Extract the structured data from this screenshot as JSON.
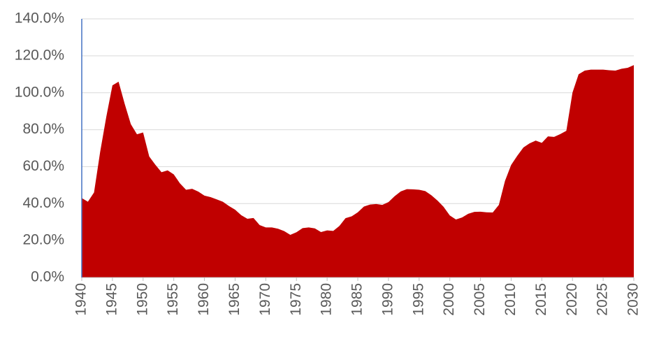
{
  "chart_data": {
    "type": "area",
    "x": [
      1940,
      1941,
      1942,
      1943,
      1944,
      1945,
      1946,
      1947,
      1948,
      1949,
      1950,
      1951,
      1952,
      1953,
      1954,
      1955,
      1956,
      1957,
      1958,
      1959,
      1960,
      1961,
      1962,
      1963,
      1964,
      1965,
      1966,
      1967,
      1968,
      1969,
      1970,
      1971,
      1972,
      1973,
      1974,
      1975,
      1976,
      1977,
      1978,
      1979,
      1980,
      1981,
      1982,
      1983,
      1984,
      1985,
      1986,
      1987,
      1988,
      1989,
      1990,
      1991,
      1992,
      1993,
      1994,
      1995,
      1996,
      1997,
      1998,
      1999,
      2000,
      2001,
      2002,
      2003,
      2004,
      2005,
      2006,
      2007,
      2008,
      2009,
      2010,
      2011,
      2012,
      2013,
      2014,
      2015,
      2016,
      2017,
      2018,
      2019,
      2020,
      2021,
      2022,
      2023,
      2024,
      2025,
      2026,
      2027,
      2028,
      2029,
      2030
    ],
    "values": [
      43,
      41,
      46,
      68,
      87,
      104,
      106,
      94,
      83,
      77.5,
      78.5,
      65.5,
      61,
      57,
      58,
      55.8,
      51,
      47.5,
      48,
      46.5,
      44.3,
      43.5,
      42.3,
      41,
      38.7,
      36.7,
      33.7,
      31.8,
      32.2,
      28.4,
      27.1,
      27.1,
      26.4,
      25.1,
      23.1,
      24.5,
      26.7,
      27.1,
      26.6,
      24.6,
      25.5,
      25.2,
      27.9,
      32.1,
      33.1,
      35.3,
      38.4,
      39.5,
      39.8,
      39.3,
      40.8,
      44,
      46.6,
      47.8,
      47.7,
      47.5,
      46.8,
      44.5,
      41.6,
      38.2,
      33.6,
      31.4,
      32.5,
      34.5,
      35.5,
      35.6,
      35.3,
      35.2,
      39.3,
      52.3,
      60.9,
      65.9,
      70.4,
      72.6,
      74.1,
      72.9,
      76.4,
      76.1,
      77.6,
      79.4,
      100.1,
      110,
      112,
      112.5,
      112.5,
      112.5,
      112.2,
      112,
      113,
      113.5,
      115
    ],
    "color": "#c00000",
    "xlim": [
      1940,
      2030
    ],
    "xticks": [
      1940,
      1945,
      1950,
      1955,
      1960,
      1965,
      1970,
      1975,
      1980,
      1985,
      1990,
      1995,
      2000,
      2005,
      2010,
      2015,
      2020,
      2025,
      2030
    ],
    "ylim": [
      0,
      140
    ],
    "yticks": [
      {
        "value": 0,
        "label": "0.0%"
      },
      {
        "value": 20,
        "label": "20.0%"
      },
      {
        "value": 40,
        "label": "40.0%"
      },
      {
        "value": 60,
        "label": "60.0%"
      },
      {
        "value": 80,
        "label": "80.0%"
      },
      {
        "value": 100,
        "label": "100.0%"
      },
      {
        "value": 120,
        "label": "120.0%"
      },
      {
        "value": 140,
        "label": "140.0%"
      }
    ],
    "grid": true
  }
}
